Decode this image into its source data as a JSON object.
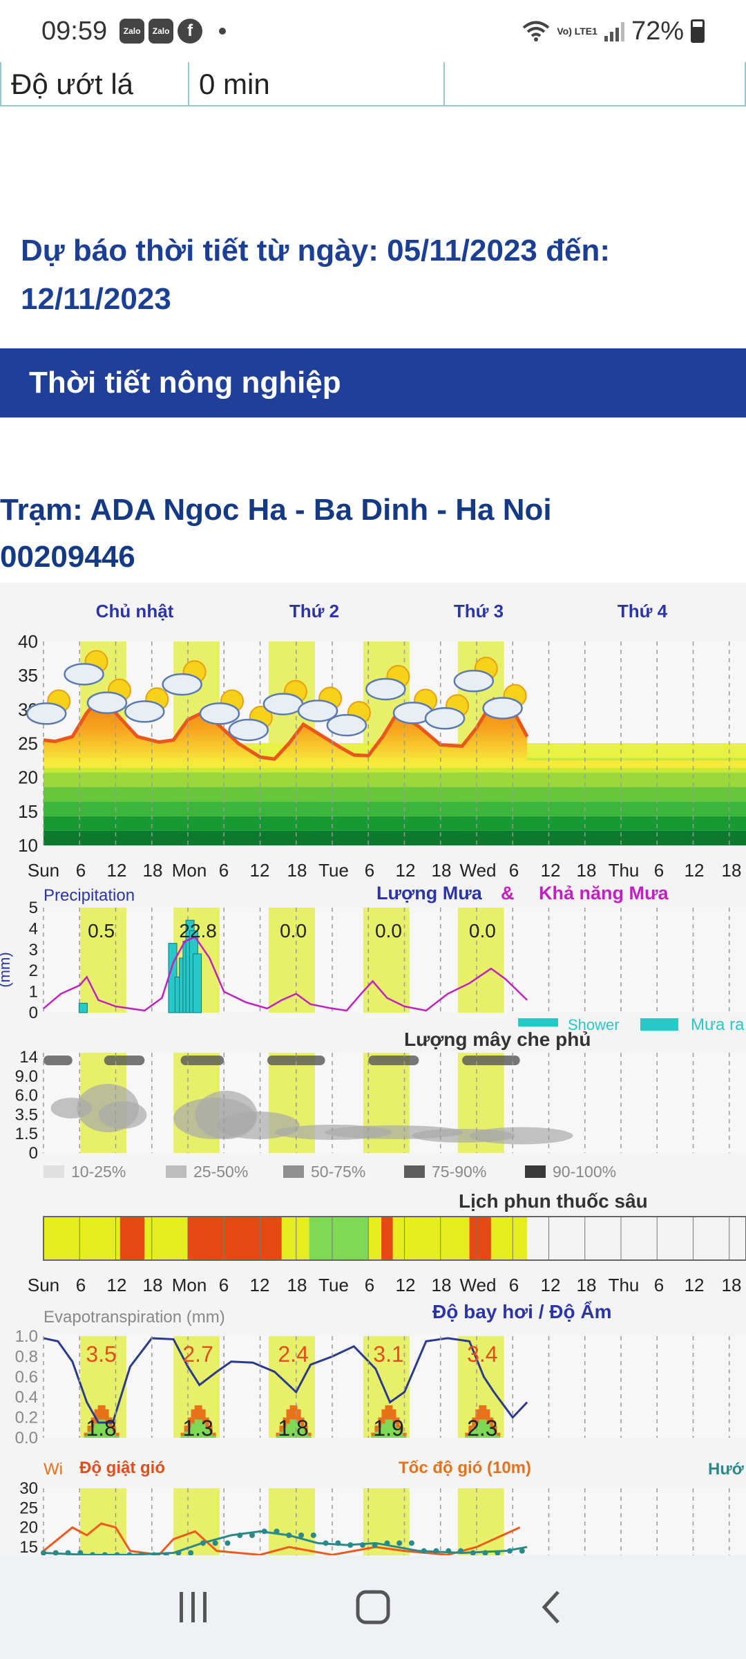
{
  "status": {
    "time": "09:59",
    "notifications": [
      "Zalo",
      "Zalo",
      "f"
    ],
    "network": "Vo) LTE1",
    "battery": "72%"
  },
  "leaf_row": {
    "label": "Độ ướt lá",
    "value": "0 min",
    "extra": ""
  },
  "forecast_title": "Dự báo thời tiết từ ngày: 05/11/2023 đến: 12/11/2023",
  "section_header": "Thời tiết nông nghiệp",
  "station": {
    "line1": "Trạm: ADA Ngoc Ha - Ba Dinh - Ha Noi",
    "line2": "00209446"
  },
  "chart": {
    "day_labels": [
      "Chủ nhật",
      "Thứ 2",
      "Thứ 3",
      "Thứ 4"
    ],
    "hour_axis": [
      "Sun",
      "6",
      "12",
      "18",
      "Mon",
      "6",
      "12",
      "18",
      "Tue",
      "6",
      "12",
      "18",
      "Wed",
      "6",
      "12",
      "18",
      "Thu",
      "6",
      "12",
      "18"
    ],
    "temp_ticks": [
      "40",
      "35",
      "30",
      "25",
      "20",
      "15",
      "10"
    ],
    "precip_title": "Precipitation",
    "precip_legend_a": "Lượng Mưa",
    "precip_legend_amp": "&",
    "precip_legend_b": "Khả năng Mưa",
    "precip_unit": "(mm)",
    "precip_ticks": [
      "5",
      "4",
      "3",
      "2",
      "1",
      "0"
    ],
    "precip_totals": [
      "0.5",
      "22.8",
      "0.0",
      "0.0",
      "0.0"
    ],
    "shower_legend": "Shower",
    "rain_legend": "Mưa ra",
    "cloud_title": "Lượng mây che phủ",
    "cloud_ticks": [
      "14",
      "9.0",
      "6.0",
      "3.5",
      "1.5",
      "0"
    ],
    "cloud_legend": [
      "10-25%",
      "25-50%",
      "50-75%",
      "75-90%",
      "90-100%"
    ],
    "cloud_legend_colors": [
      "#e0e0e0",
      "#bdbdbd",
      "#8f8f8f",
      "#5e5e5e",
      "#3a3a3a"
    ],
    "spray_title": "Lịch phun thuốc sâu",
    "evap_title": "Evapotranspiration (mm)",
    "evap_title_b": "Độ bay hơi / Độ Ẩm",
    "evap_ticks": [
      "1.0",
      "0.8",
      "0.6",
      "0.4",
      "0.2",
      "0.0"
    ],
    "evap_top": [
      "3.5",
      "2.7",
      "2.4",
      "3.1",
      "3.4"
    ],
    "evap_bottom": [
      "1.8",
      "1.3",
      "1.8",
      "1.9",
      "2.3"
    ],
    "wind_wi": "Wi",
    "wind_gust": "Độ giật gió",
    "wind_speed": "Tốc độ gió (10m)",
    "wind_dir": "Hướ",
    "wind_ticks": [
      "30",
      "25",
      "20",
      "15"
    ],
    "colors": {
      "day_band": "#e8f06a",
      "temp_line": "#e8571b",
      "precip_bar": "#28c8c8",
      "precip_prob": "#c21fc2",
      "spray_red": "#e64a12",
      "spray_yellow": "#e6ed1e",
      "spray_green": "#7ed957",
      "evap_line": "#2a3a8c",
      "evap_orange": "#e8711b",
      "evap_green": "#7ed957",
      "title_blue": "#2b35a8",
      "title_magenta": "#c21fc2",
      "wind_orange": "#ee5a1b",
      "wind_teal": "#2a8a8a"
    }
  }
}
